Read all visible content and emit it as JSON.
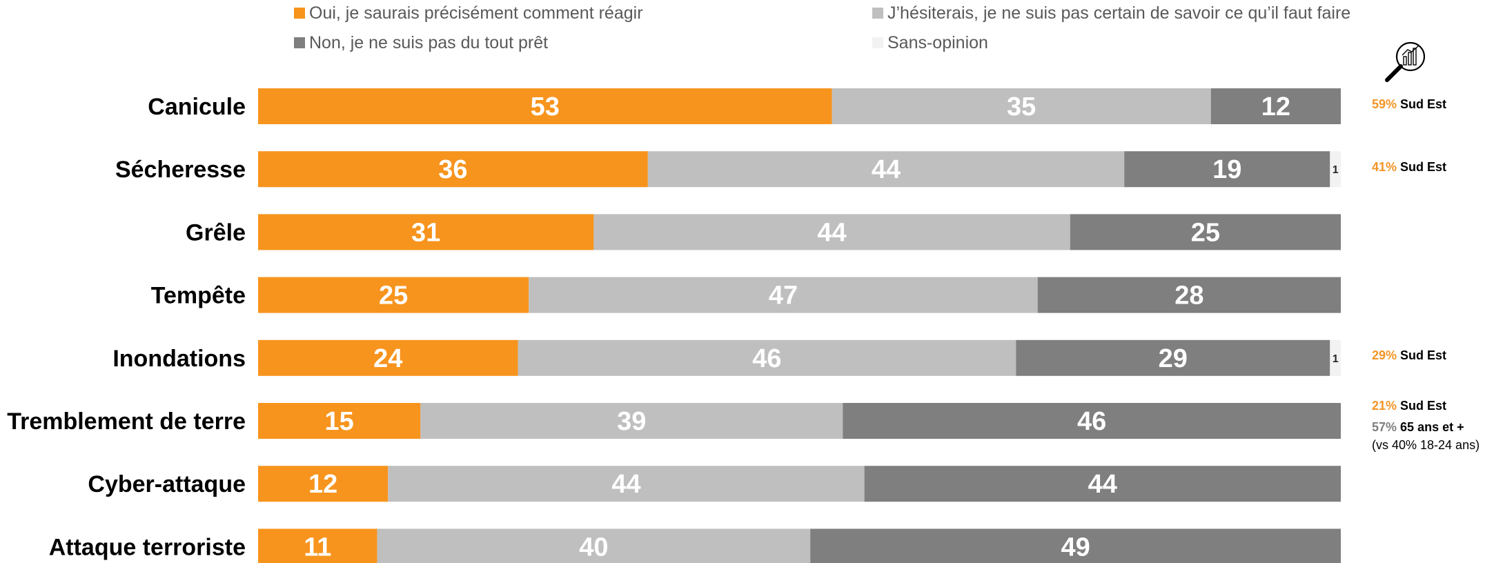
{
  "colors": {
    "oui": "#f7941d",
    "hesite": "#bfbfbf",
    "non": "#7f7f7f",
    "sans_opinion": "#f2f2f2",
    "accent_text": "#f39425"
  },
  "icons": {
    "magnifier": "magnifier-chart-icon"
  },
  "chart_data": {
    "type": "bar",
    "orientation": "horizontal",
    "stacked": true,
    "categories": [
      "Canicule",
      "Sécheresse",
      "Grêle",
      "Tempête",
      "Inondations",
      "Tremblement de terre",
      "Cyber-attaque",
      "Attaque terroriste"
    ],
    "series": [
      {
        "name": "Oui, je saurais précisément comment réagir",
        "values": [
          53,
          36,
          31,
          25,
          24,
          15,
          12,
          11
        ]
      },
      {
        "name": "J’hésiterais, je ne suis pas certain de savoir ce qu’il faut faire",
        "values": [
          35,
          44,
          44,
          47,
          46,
          39,
          44,
          40
        ]
      },
      {
        "name": "Non, je ne suis pas du tout prêt",
        "values": [
          12,
          19,
          25,
          28,
          29,
          46,
          44,
          49
        ]
      },
      {
        "name": "Sans-opinion",
        "values": [
          0,
          1,
          0,
          0,
          1,
          0,
          0,
          0
        ]
      }
    ],
    "xlim": [
      0,
      100
    ],
    "legend_position": "top",
    "grid": false
  },
  "notes": [
    {
      "pct": "59%",
      "label": "Sud Est",
      "category": "Canicule"
    },
    {
      "pct": "41%",
      "label": "Sud Est",
      "category": "Sécheresse"
    },
    {
      "pct": "29%",
      "label": "Sud Est",
      "category": "Inondations"
    },
    {
      "pct": "21%",
      "label": "Sud Est",
      "category": "Tremblement de terre"
    },
    {
      "pct": "57%",
      "label": "65 ans et +",
      "category": "Tremblement de terre",
      "sub": "(vs 40% 18-24 ans)"
    }
  ]
}
